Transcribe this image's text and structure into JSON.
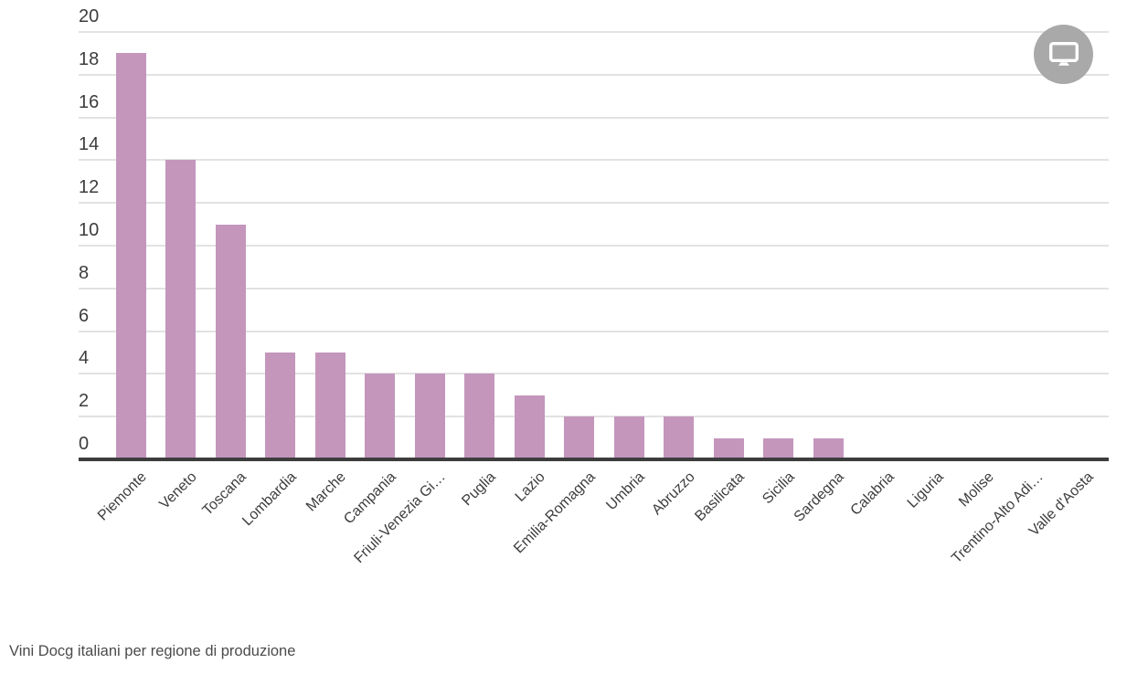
{
  "chart_data": {
    "type": "bar",
    "title": "Vini Docg italiani per regione di produzione",
    "categories": [
      "Piemonte",
      "Veneto",
      "Toscana",
      "Lombardia",
      "Marche",
      "Campania",
      "Friuli-Venezia Gi…",
      "Puglia",
      "Lazio",
      "Emilia-Romagna",
      "Umbria",
      "Abruzzo",
      "Basilicata",
      "Sicilia",
      "Sardegna",
      "Calabria",
      "Liguria",
      "Molise",
      "Trentino-Alto Adi…",
      "Valle d'Aosta"
    ],
    "values": [
      19,
      14,
      11,
      5,
      5,
      4,
      4,
      4,
      3,
      2,
      2,
      2,
      1,
      1,
      1,
      0,
      0,
      0,
      0,
      0
    ],
    "xlabel": "",
    "ylabel": "",
    "ylim": [
      0,
      20
    ],
    "yticks": [
      0,
      2,
      4,
      6,
      8,
      10,
      12,
      14,
      16,
      18,
      20
    ],
    "grid": true,
    "legend": "none",
    "bar_color": "#c496bc"
  },
  "footer": {
    "caption": "Vini Docg italiani per regione di produzione"
  },
  "header": {
    "screen_button_icon": "monitor-icon"
  },
  "colors": {
    "background": "#ffffff",
    "bar": "#c496bc",
    "grid": "#e2e2e2",
    "axis": "#3d3d3d",
    "tick_label": "#3d3d3d",
    "caption": "#4b4b4b",
    "icon_circle": "#a9a9a9",
    "icon_glyph": "#ffffff"
  }
}
